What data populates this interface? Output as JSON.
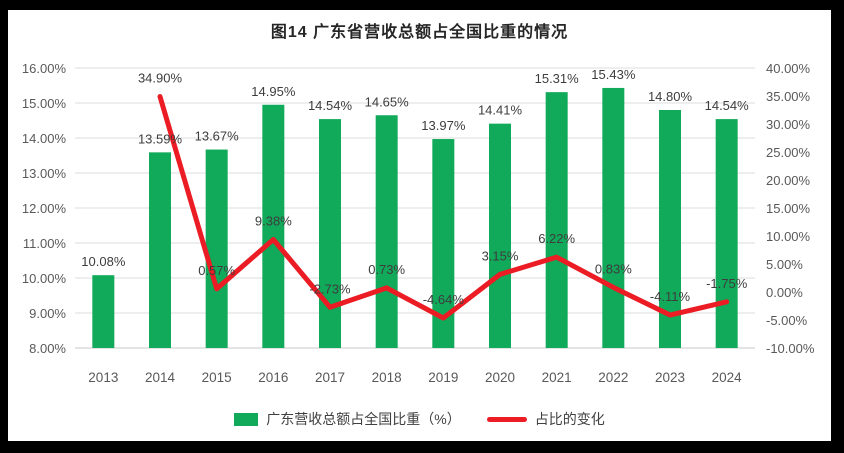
{
  "frame": {
    "background": "#000000",
    "panel_background": "#ffffff"
  },
  "chart_data": {
    "type": "bar+line",
    "title": "图14  广东省营收总额占全国比重的情况",
    "categories": [
      "2013",
      "2014",
      "2015",
      "2016",
      "2017",
      "2018",
      "2019",
      "2020",
      "2021",
      "2022",
      "2023",
      "2024"
    ],
    "series": [
      {
        "name": "广东营收总额占全国比重（%）",
        "type": "bar",
        "axis": "left",
        "color": "#11A95A",
        "values": [
          10.08,
          13.59,
          13.67,
          14.95,
          14.54,
          14.65,
          13.97,
          14.41,
          15.31,
          15.43,
          14.8,
          14.54
        ],
        "data_labels": [
          "10.08%",
          "13.59%",
          "13.67%",
          "14.95%",
          "14.54%",
          "14.65%",
          "13.97%",
          "14.41%",
          "15.31%",
          "15.43%",
          "14.80%",
          "14.54%"
        ]
      },
      {
        "name": "占比的变化",
        "type": "line",
        "axis": "right",
        "color": "#EB1C24",
        "values": [
          null,
          34.9,
          0.57,
          9.38,
          -2.73,
          0.73,
          -4.64,
          3.15,
          6.22,
          0.83,
          -4.11,
          -1.75
        ],
        "data_labels": [
          null,
          "34.90%",
          "0.57%",
          "9.38%",
          "-2.73%",
          "0.73%",
          "-4.64%",
          "3.15%",
          "6.22%",
          "0.83%",
          "-4.11%",
          "-1.75%"
        ]
      }
    ],
    "axes": {
      "left": {
        "min": 8,
        "max": 16,
        "tick_labels": [
          "8.00%",
          "9.00%",
          "10.00%",
          "11.00%",
          "12.00%",
          "13.00%",
          "14.00%",
          "15.00%",
          "16.00%"
        ]
      },
      "right": {
        "min": -10,
        "max": 40,
        "tick_labels": [
          "-10.00%",
          "-5.00%",
          "0.00%",
          "5.00%",
          "10.00%",
          "15.00%",
          "20.00%",
          "25.00%",
          "30.00%",
          "35.00%",
          "40.00%"
        ]
      }
    },
    "grid": true,
    "legend_position": "bottom"
  }
}
